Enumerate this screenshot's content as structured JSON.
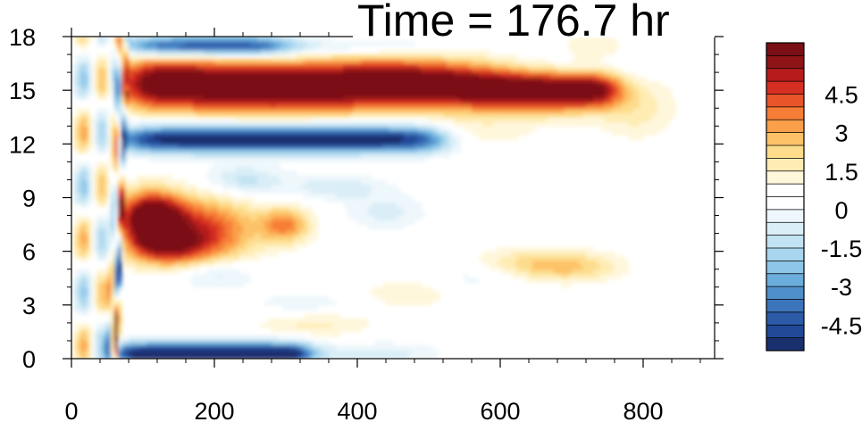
{
  "chart_data": {
    "type": "heatmap",
    "title": "Time = 176.7 hr",
    "xlabel": "",
    "ylabel": "",
    "xlim": [
      0,
      900
    ],
    "ylim": [
      0,
      18
    ],
    "x_ticks": [
      0,
      200,
      400,
      600,
      800
    ],
    "x_tick_labels": [
      "0",
      "200",
      "400",
      "600",
      "800"
    ],
    "y_ticks": [
      0,
      3,
      6,
      9,
      12,
      15,
      18
    ],
    "y_tick_labels": [
      "0",
      "3",
      "6",
      "9",
      "12",
      "15",
      "18"
    ],
    "colorbar": {
      "levels": [
        -5.5,
        -5,
        -4.5,
        -4,
        -3.5,
        -3,
        -2.5,
        -2,
        -1.5,
        -1,
        -0.5,
        0,
        0.5,
        1,
        1.5,
        2,
        2.5,
        3,
        3.5,
        4,
        4.5,
        5,
        5.5
      ],
      "colors": [
        "#1a2f6e",
        "#214797",
        "#2c5ba8",
        "#3c74bb",
        "#4f90cb",
        "#6baddc",
        "#8cc6e8",
        "#a9d6ef",
        "#c2e3f3",
        "#daeef8",
        "#eef7fb",
        "#ffffff",
        "#ffffff",
        "#fff7dc",
        "#feecb3",
        "#fddc8c",
        "#fdc268",
        "#fba04a",
        "#f67d35",
        "#e95428",
        "#d52f22",
        "#b71c1c",
        "#8e1418",
        "#7a0f15"
      ],
      "tick_values": [
        4.5,
        3,
        1.5,
        0,
        -1.5,
        -3,
        -4.5
      ],
      "tick_labels": [
        "4.5",
        "3",
        "1.5",
        "0",
        "-1.5",
        "-3",
        "-4.5"
      ]
    },
    "features": [
      {
        "name": "upper positive jet",
        "x_range": [
          70,
          800
        ],
        "y_center": 15.2,
        "peak": 5.5
      },
      {
        "name": "negative band below jet",
        "x_range": [
          70,
          500
        ],
        "y_center": 12.3,
        "peak": -5.5
      },
      {
        "name": "mid-level positive",
        "x_range": [
          70,
          330
        ],
        "y_center": 7.5,
        "peak": 5.0
      },
      {
        "name": "near-surface negative",
        "x_range": [
          70,
          500
        ],
        "y_center": 0.4,
        "peak": -5.5
      },
      {
        "name": "top negative",
        "x_range": [
          70,
          350
        ],
        "y_center": 17.5,
        "peak": -5.0
      }
    ]
  }
}
